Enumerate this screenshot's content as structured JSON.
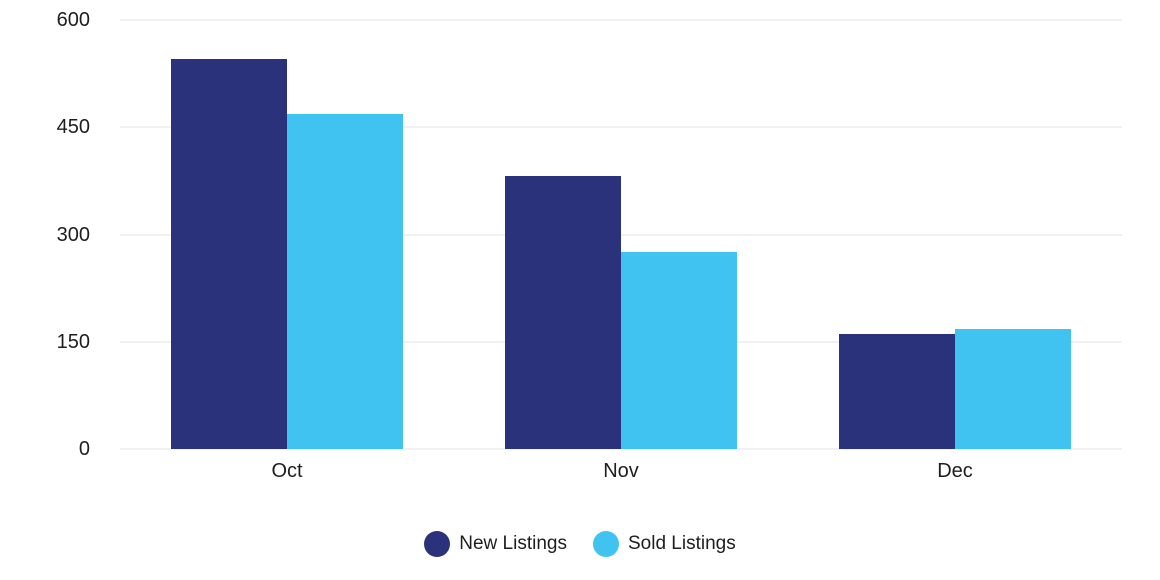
{
  "chart_data": {
    "type": "bar",
    "title": "",
    "xlabel": "",
    "ylabel": "",
    "categories": [
      "Oct",
      "Nov",
      "Dec"
    ],
    "series": [
      {
        "name": "New Listings",
        "color": "#2A327C",
        "values": [
          545,
          382,
          161
        ]
      },
      {
        "name": "Sold Listings",
        "color": "#40C3F1",
        "values": [
          468,
          275,
          168
        ]
      }
    ],
    "ylim": [
      0,
      600
    ],
    "yticks": [
      0,
      150,
      300,
      450,
      600
    ],
    "grid": "horizontal",
    "legend_position": "bottom"
  },
  "colors": {
    "background": "#ffffff",
    "gridline": "#f1f1f4",
    "text": "#1e1e1e"
  }
}
